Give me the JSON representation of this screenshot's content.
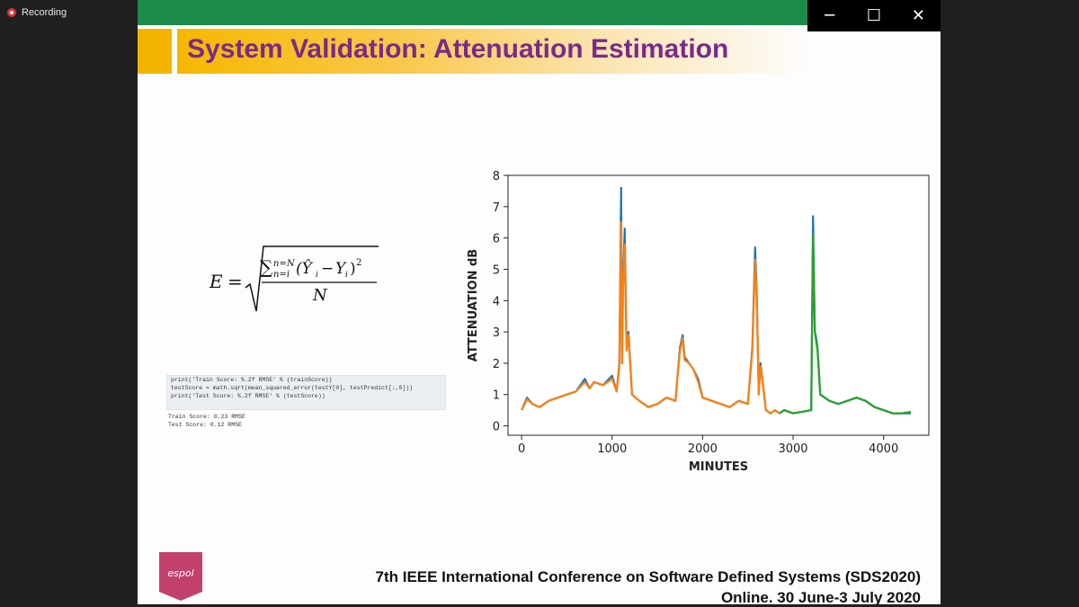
{
  "recording": {
    "label": "Recording"
  },
  "window_controls": {
    "minimize": "─",
    "maximize": "☐",
    "close": "✕"
  },
  "slide": {
    "title": "System Validation: Attenuation Estimation",
    "formula_aria": "E = sqrt( sum_{n=i}^{n=N} (Ŷi − Yi)² / N )",
    "code": [
      "print('Train Score: %.2f RMSE' % (trainScore))",
      "testScore = math.sqrt(mean_squared_error(testY[0], testPredict[:,0]))",
      "print('Test Score: %.2f RMSE' % (testScore))"
    ],
    "output": [
      "Train Score: 0.23 RMSE",
      "Test Score: 0.12 RMSE"
    ],
    "footer_line1": "7th IEEE International Conference on Software Defined Systems (SDS2020)",
    "footer_line2": "Online. 30 June-3 July 2020",
    "logo_text": "espol",
    "colors": {
      "title": "#7a2a8a",
      "band": "#f6b800",
      "topbar": "#1d8a4a",
      "logo": "#c2406e"
    }
  },
  "chart_data": {
    "type": "line",
    "xlabel": "MINUTES",
    "ylabel": "ATTENUATION dB",
    "xlim": [
      -150,
      4500
    ],
    "ylim": [
      -0.3,
      8
    ],
    "xticks": [
      0,
      1000,
      2000,
      3000,
      4000
    ],
    "yticks": [
      0,
      1,
      2,
      3,
      4,
      5,
      6,
      7,
      8
    ],
    "grid": false,
    "series": [
      {
        "color": "#1f77b4",
        "x": [
          0,
          60,
          120,
          200,
          300,
          400,
          500,
          600,
          700,
          750,
          800,
          900,
          1000,
          1050,
          1080,
          1100,
          1110,
          1120,
          1140,
          1160,
          1180,
          1200,
          1220,
          1260,
          1300,
          1400,
          1500,
          1600,
          1700,
          1750,
          1780,
          1800,
          1850,
          1900,
          1950,
          2000,
          2100,
          2200,
          2300,
          2400,
          2500,
          2550,
          2580,
          2600,
          2620,
          2640,
          2680,
          2700,
          2750,
          2800,
          2850,
          2900,
          3000,
          3100,
          3200,
          3220,
          3240,
          3250,
          3270,
          3300,
          3400,
          3500,
          3600,
          3700,
          3800,
          3900,
          4000,
          4100,
          4200,
          4300
        ],
        "y": [
          0.5,
          0.9,
          0.7,
          0.6,
          0.8,
          0.9,
          1.0,
          1.1,
          1.5,
          1.2,
          1.4,
          1.3,
          1.6,
          1.1,
          2.0,
          7.6,
          2.0,
          4.5,
          6.3,
          2.5,
          3.0,
          2.0,
          1.0,
          0.9,
          0.8,
          0.6,
          0.7,
          0.9,
          0.8,
          2.5,
          2.9,
          2.2,
          2.0,
          1.8,
          1.5,
          0.9,
          0.8,
          0.7,
          0.6,
          0.8,
          0.7,
          2.5,
          5.7,
          4.0,
          1.0,
          2.0,
          1.0,
          0.5,
          0.4,
          0.5,
          0.4,
          0.5,
          0.4,
          0.45,
          0.5,
          6.7,
          3.0,
          2.9,
          2.5,
          1.0,
          0.8,
          0.7,
          0.8,
          0.9,
          0.8,
          0.6,
          0.5,
          0.4,
          0.4,
          0.4
        ]
      },
      {
        "color": "#ff7f0e",
        "x": [
          0,
          60,
          120,
          200,
          300,
          400,
          500,
          600,
          700,
          750,
          800,
          900,
          1000,
          1050,
          1080,
          1100,
          1110,
          1120,
          1140,
          1160,
          1180,
          1200,
          1220,
          1260,
          1300,
          1400,
          1500,
          1600,
          1700,
          1750,
          1780,
          1800,
          1850,
          1900,
          1950,
          2000,
          2100,
          2200,
          2300,
          2400,
          2500,
          2550,
          2580,
          2600,
          2620,
          2640,
          2680,
          2700,
          2750,
          2800,
          2850
        ],
        "y": [
          0.5,
          0.85,
          0.7,
          0.6,
          0.8,
          0.9,
          1.0,
          1.1,
          1.4,
          1.2,
          1.4,
          1.3,
          1.5,
          1.1,
          1.9,
          6.5,
          2.0,
          4.3,
          5.8,
          2.4,
          2.9,
          2.0,
          1.0,
          0.9,
          0.8,
          0.6,
          0.7,
          0.9,
          0.8,
          2.4,
          2.8,
          2.1,
          2.0,
          1.8,
          1.4,
          0.9,
          0.8,
          0.7,
          0.6,
          0.8,
          0.7,
          2.4,
          5.3,
          3.8,
          1.0,
          1.9,
          1.0,
          0.5,
          0.4,
          0.5,
          0.4
        ]
      },
      {
        "color": "#2ca02c",
        "x": [
          2850,
          2900,
          3000,
          3100,
          3200,
          3220,
          3240,
          3250,
          3270,
          3300,
          3400,
          3500,
          3600,
          3700,
          3800,
          3900,
          4000,
          4100,
          4200,
          4300
        ],
        "y": [
          0.4,
          0.5,
          0.4,
          0.45,
          0.5,
          6.1,
          3.0,
          2.8,
          2.4,
          1.0,
          0.8,
          0.7,
          0.8,
          0.9,
          0.8,
          0.6,
          0.5,
          0.4,
          0.4,
          0.45
        ]
      }
    ]
  }
}
